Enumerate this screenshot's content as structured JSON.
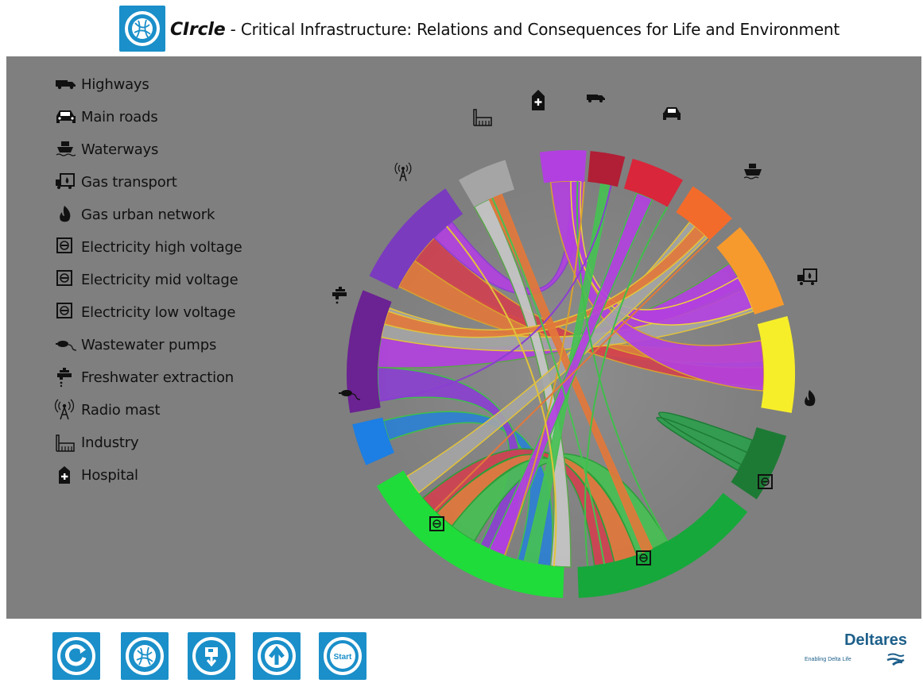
{
  "header": {
    "brand": "CIrcle",
    "title_rest": " - Critical Infrastructure: Relations and Consequences for Life and Environment",
    "logo_icon": "circle-chord-logo-icon"
  },
  "colors": {
    "accent": "#1a8fc9",
    "canvas_bg": "#7f7f7f",
    "deltares_blue": "#1d5f8a"
  },
  "legend": {
    "items": [
      {
        "label": "Highways",
        "icon": "truck-icon"
      },
      {
        "label": "Main roads",
        "icon": "car-icon"
      },
      {
        "label": "Waterways",
        "icon": "ship-icon"
      },
      {
        "label": "Gas transport",
        "icon": "gas-truck-icon"
      },
      {
        "label": "Gas urban network",
        "icon": "flame-icon"
      },
      {
        "label": "Electricity high voltage",
        "icon": "socket-icon"
      },
      {
        "label": "Electricity mid voltage",
        "icon": "socket-icon"
      },
      {
        "label": "Electricity low voltage",
        "icon": "socket-icon"
      },
      {
        "label": "Wastewater pumps",
        "icon": "pump-icon"
      },
      {
        "label": "Freshwater extraction",
        "icon": "tap-icon"
      },
      {
        "label": "Radio mast",
        "icon": "radio-mast-icon"
      },
      {
        "label": "Industry",
        "icon": "factory-icon"
      },
      {
        "label": "Hospital",
        "icon": "hospital-icon"
      }
    ]
  },
  "diagram": {
    "segments": [
      {
        "name": "Hospital",
        "color": "#b23fe0"
      },
      {
        "name": "Highways",
        "color": "#b01f35"
      },
      {
        "name": "Main roads",
        "color": "#d9263a"
      },
      {
        "name": "Waterways",
        "color": "#f36b2b"
      },
      {
        "name": "Gas transport",
        "color": "#f79a2e"
      },
      {
        "name": "Gas urban network",
        "color": "#f7ee2a"
      },
      {
        "name": "Electricity high voltage",
        "color": "#1d7a34"
      },
      {
        "name": "Electricity mid voltage",
        "color": "#16a83b"
      },
      {
        "name": "Electricity low voltage",
        "color": "#1fdc3a"
      },
      {
        "name": "Wastewater pumps",
        "color": "#1d7ee3"
      },
      {
        "name": "Freshwater extraction",
        "color": "#6b2292"
      },
      {
        "name": "Radio mast",
        "color": "#7a3bbf"
      },
      {
        "name": "Industry",
        "color": "#a5a5a5"
      }
    ]
  },
  "footer": {
    "buttons": [
      {
        "name": "reset-button",
        "icon": "refresh-icon"
      },
      {
        "name": "circle-home-button",
        "icon": "circle-chord-logo-icon"
      },
      {
        "name": "save-button",
        "icon": "save-icon"
      },
      {
        "name": "upload-button",
        "icon": "upload-icon"
      },
      {
        "name": "start-button",
        "icon": "start-icon",
        "label": "Start"
      }
    ],
    "deltares_name": "Deltares",
    "deltares_tagline": "Enabling Delta Life"
  }
}
